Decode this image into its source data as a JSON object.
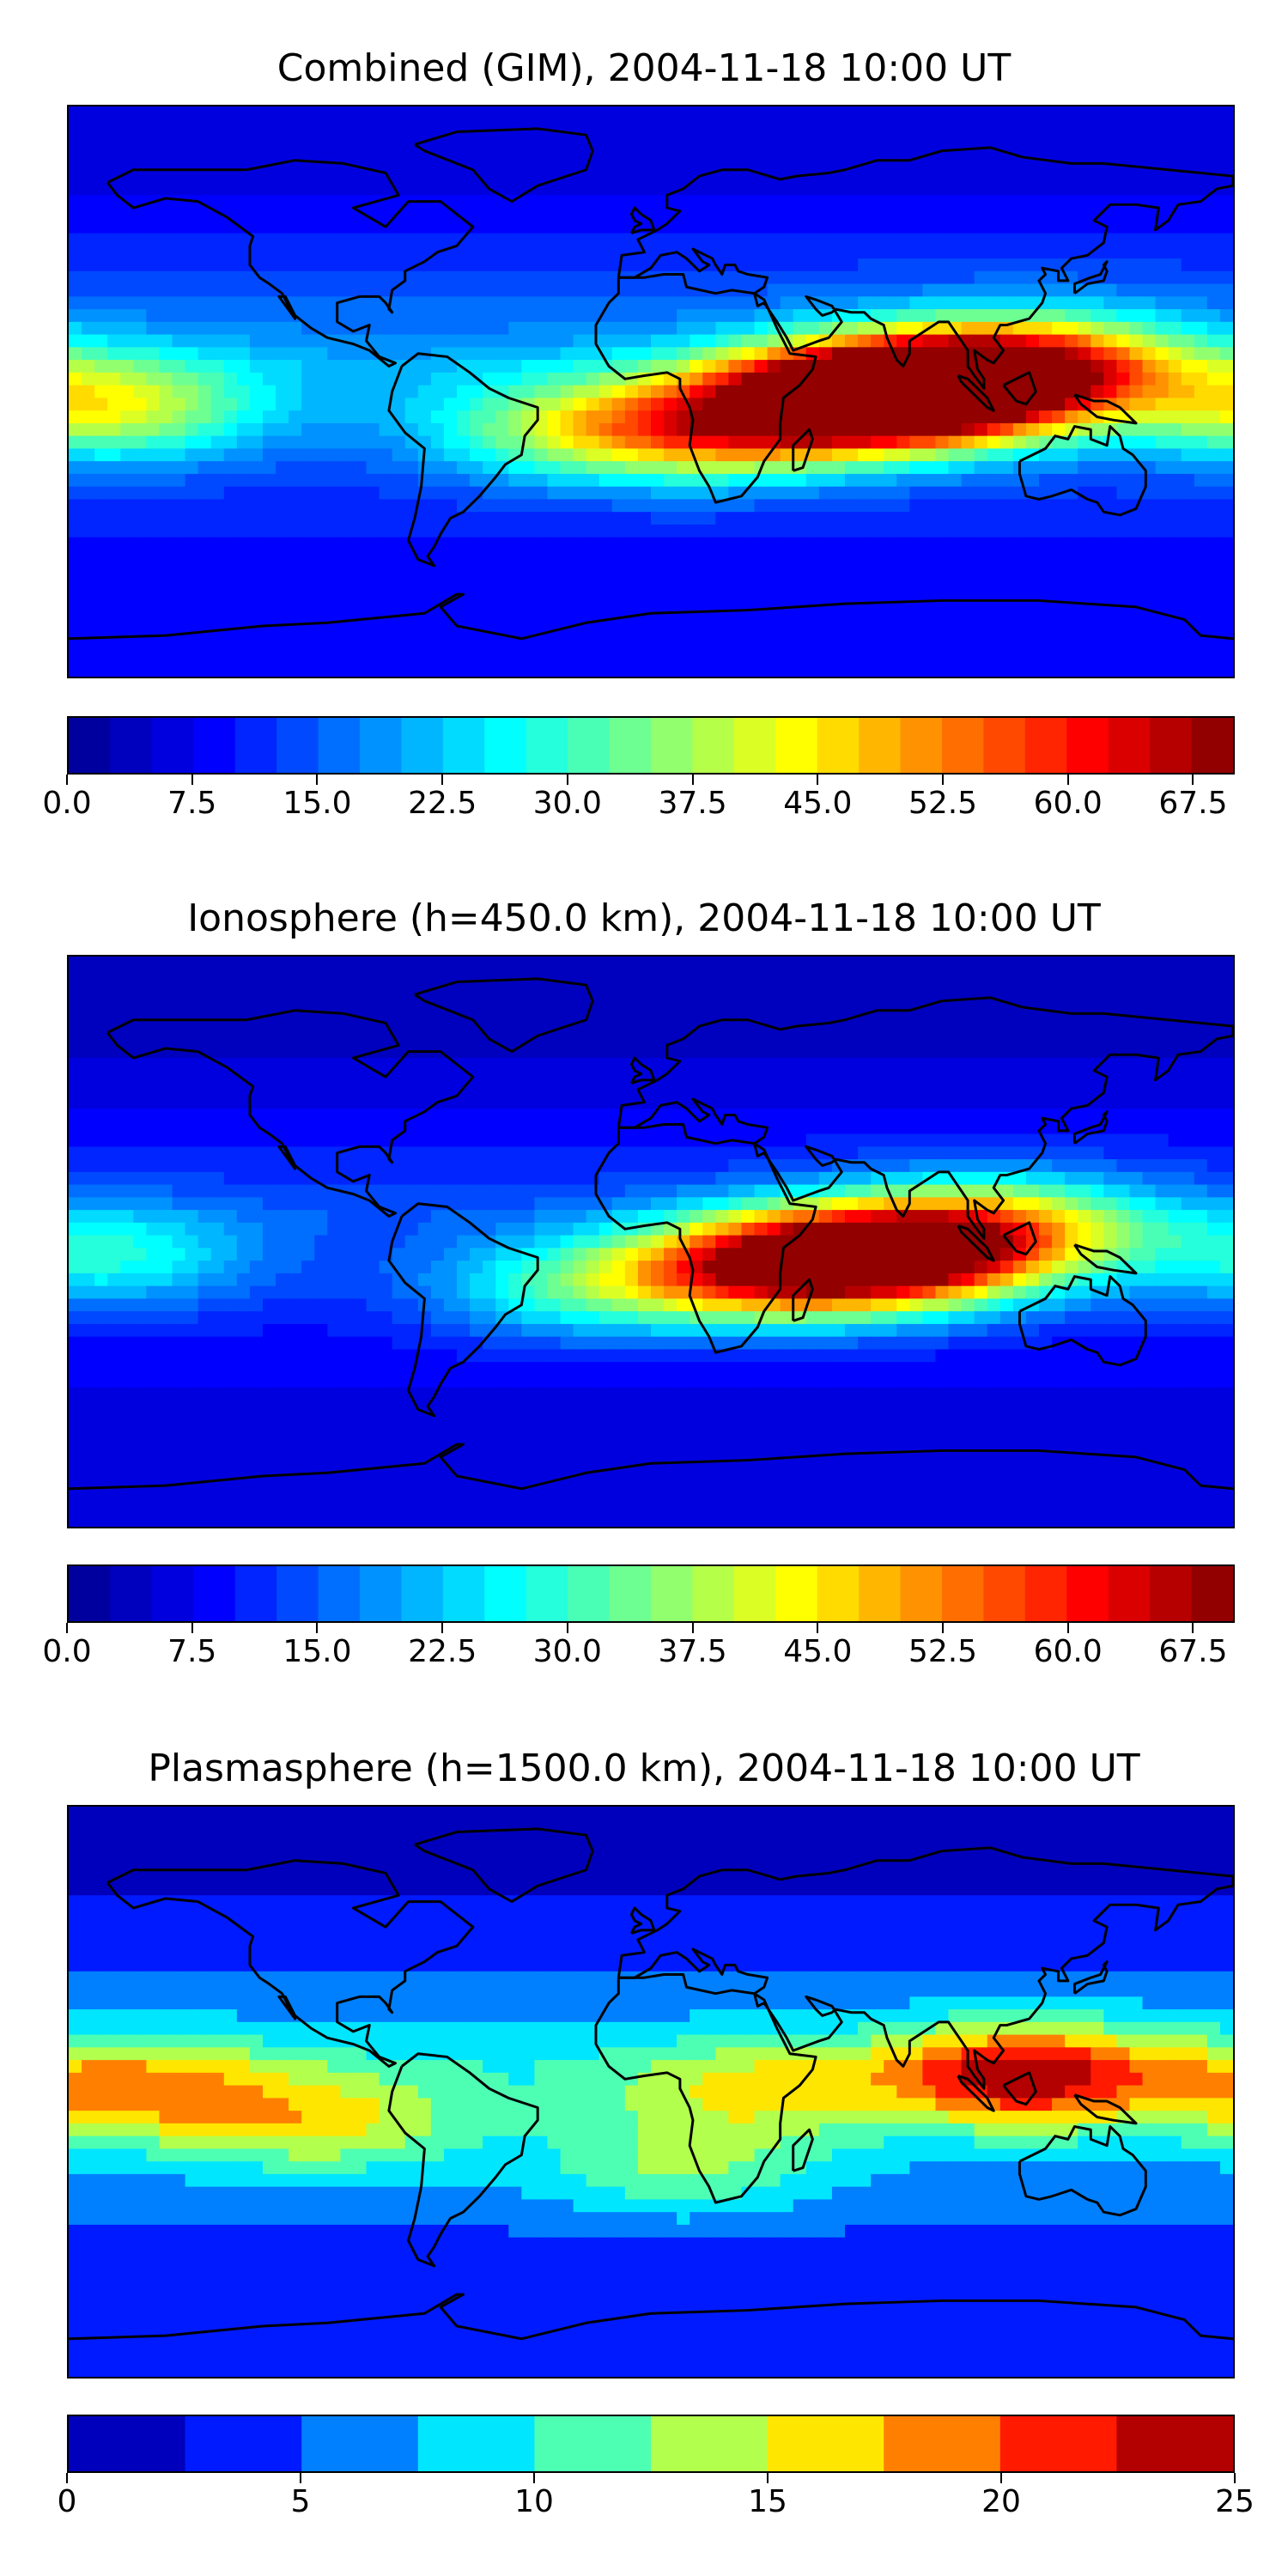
{
  "panels": [
    {
      "title": "Combined (GIM), 2004-11-18 10:00 UT",
      "colorbar": {
        "min": 0,
        "max": 70,
        "levels": 28,
        "tick_values": [
          0,
          7.5,
          15,
          22.5,
          30,
          37.5,
          45,
          52.5,
          60,
          67.5
        ],
        "tick_labels": [
          "0.0",
          "7.5",
          "15.0",
          "22.5",
          "30.0",
          "37.5",
          "45.0",
          "52.5",
          "60.0",
          "67.5"
        ]
      },
      "field": {
        "background": 14,
        "bands": [
          {
            "lat": 72,
            "value": 6
          },
          {
            "lat": 45,
            "value": 11
          },
          {
            "lat": 8,
            "value": 20
          },
          {
            "lat": -30,
            "value": 12
          },
          {
            "lat": -60,
            "value": 8
          }
        ],
        "peaks": [
          {
            "lon": 85,
            "lat": 0,
            "value": 66
          },
          {
            "lon": 60,
            "lat": -2,
            "value": 60
          },
          {
            "lon": 20,
            "lat": -12,
            "value": 44
          },
          {
            "lon": 120,
            "lat": 8,
            "value": 52
          },
          {
            "lon": -168,
            "lat": -5,
            "value": 40
          },
          {
            "lon": -25,
            "lat": -12,
            "value": 33
          }
        ]
      }
    },
    {
      "title": "Ionosphere  (h=450.0 km), 2004-11-18 10:00 UT",
      "colorbar": {
        "min": 0,
        "max": 70,
        "levels": 28,
        "tick_values": [
          0,
          7.5,
          15,
          22.5,
          30,
          37.5,
          45,
          52.5,
          60,
          67.5
        ],
        "tick_labels": [
          "0.0",
          "7.5",
          "15.0",
          "22.5",
          "30.0",
          "37.5",
          "45.0",
          "52.5",
          "60.0",
          "67.5"
        ]
      },
      "field": {
        "background": 9,
        "bands": [
          {
            "lat": 72,
            "value": 3
          },
          {
            "lat": 45,
            "value": 7
          },
          {
            "lat": 8,
            "value": 14
          },
          {
            "lat": -30,
            "value": 9
          },
          {
            "lat": -60,
            "value": 6
          }
        ],
        "peaks": [
          {
            "lon": 80,
            "lat": -5,
            "value": 47
          },
          {
            "lon": 55,
            "lat": -5,
            "value": 44
          },
          {
            "lon": 25,
            "lat": -10,
            "value": 38
          },
          {
            "lon": 110,
            "lat": 5,
            "value": 36
          },
          {
            "lon": -168,
            "lat": -5,
            "value": 25
          },
          {
            "lon": -25,
            "lat": -15,
            "value": 25
          }
        ]
      }
    },
    {
      "title": "Plasmasphere (h=1500.0 km), 2004-11-18 10:00 UT",
      "colorbar": {
        "min": 0,
        "max": 25,
        "levels": 10,
        "tick_values": [
          0,
          5,
          10,
          15,
          20,
          25
        ],
        "tick_labels": [
          "0",
          "5",
          "10",
          "15",
          "20",
          "25"
        ]
      },
      "field": {
        "background": 5,
        "bands": [
          {
            "lat": 72,
            "value": 1.5
          },
          {
            "lat": 45,
            "value": 4
          },
          {
            "lat": 8,
            "value": 9
          },
          {
            "lat": -30,
            "value": 6
          },
          {
            "lat": -60,
            "value": 3
          }
        ],
        "peaks": [
          {
            "lon": 115,
            "lat": 5,
            "value": 21
          },
          {
            "lon": -160,
            "lat": 0,
            "value": 15
          },
          {
            "lon": -100,
            "lat": -10,
            "value": 13
          },
          {
            "lon": 30,
            "lat": 0,
            "value": 12
          },
          {
            "lon": 10,
            "lat": -25,
            "value": 11
          }
        ]
      }
    }
  ],
  "colormap": [
    "#00008f",
    "#0000ff",
    "#0080ff",
    "#00ffff",
    "#80ff80",
    "#ffff00",
    "#ff8000",
    "#ff0000",
    "#800000"
  ]
}
